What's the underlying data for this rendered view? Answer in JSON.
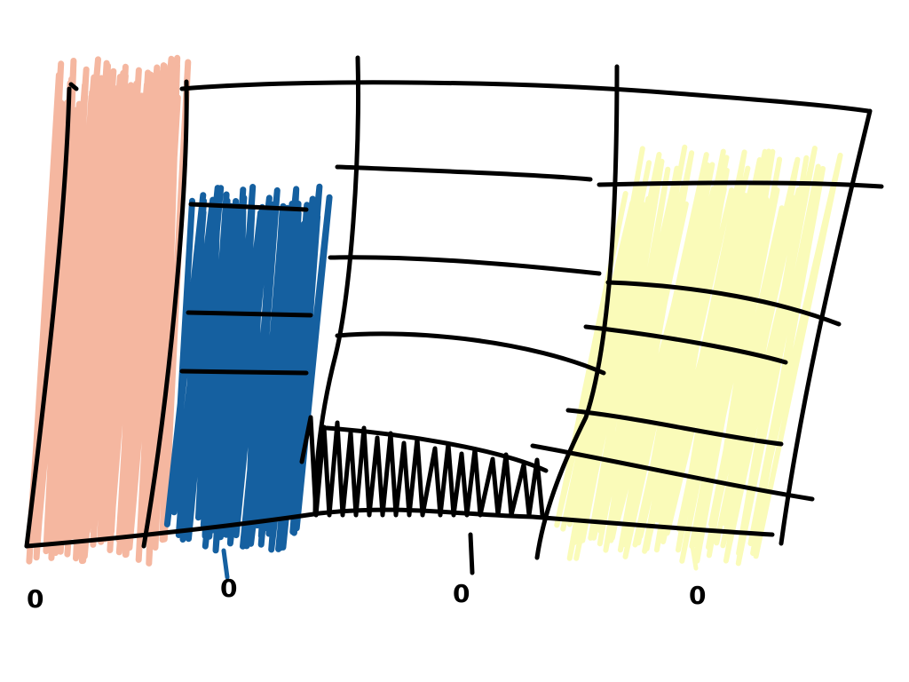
{
  "drawing": {
    "background": "#ffffff",
    "line_color": "#000000",
    "fill_colors": {
      "salmon": "#f5b7a0",
      "blue": "#1560a0",
      "black": "#000000",
      "yellow": "#fafbb9"
    },
    "bottom_labels": [
      "0",
      "0",
      "0",
      "0"
    ]
  }
}
